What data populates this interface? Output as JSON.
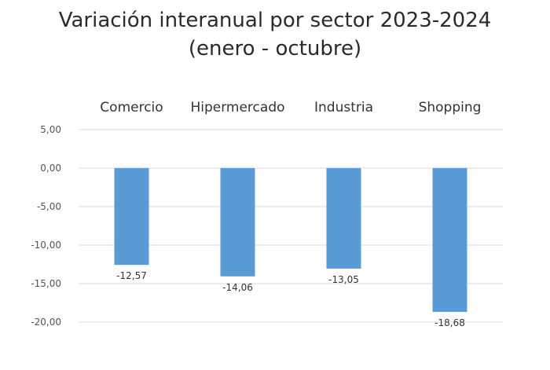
{
  "title_line1": "Variación interanual por sector 2023-2024",
  "title_line2": "(enero - octubre)",
  "chart_data": {
    "type": "bar",
    "title": "Variación interanual por sector 2023-2024 (enero - octubre)",
    "categories": [
      "Comercio",
      "Hipermercado",
      "Industria",
      "Shopping"
    ],
    "values": [
      -12.57,
      -14.06,
      -13.05,
      -18.68
    ],
    "value_labels": [
      "-12,57",
      "-14,06",
      "-13,05",
      "-18,68"
    ],
    "ylim": [
      -20,
      5
    ],
    "y_ticks": [
      5,
      0,
      -5,
      -10,
      -15,
      -20
    ],
    "y_tick_labels": [
      "5,00",
      "0,00",
      "-5,00",
      "-10,00",
      "-15,00",
      "-20,00"
    ],
    "category_labels_position": "top",
    "grid": true,
    "bar_color": "#5b9bd5",
    "grid_color": "#d9d9d9",
    "legend": false
  }
}
